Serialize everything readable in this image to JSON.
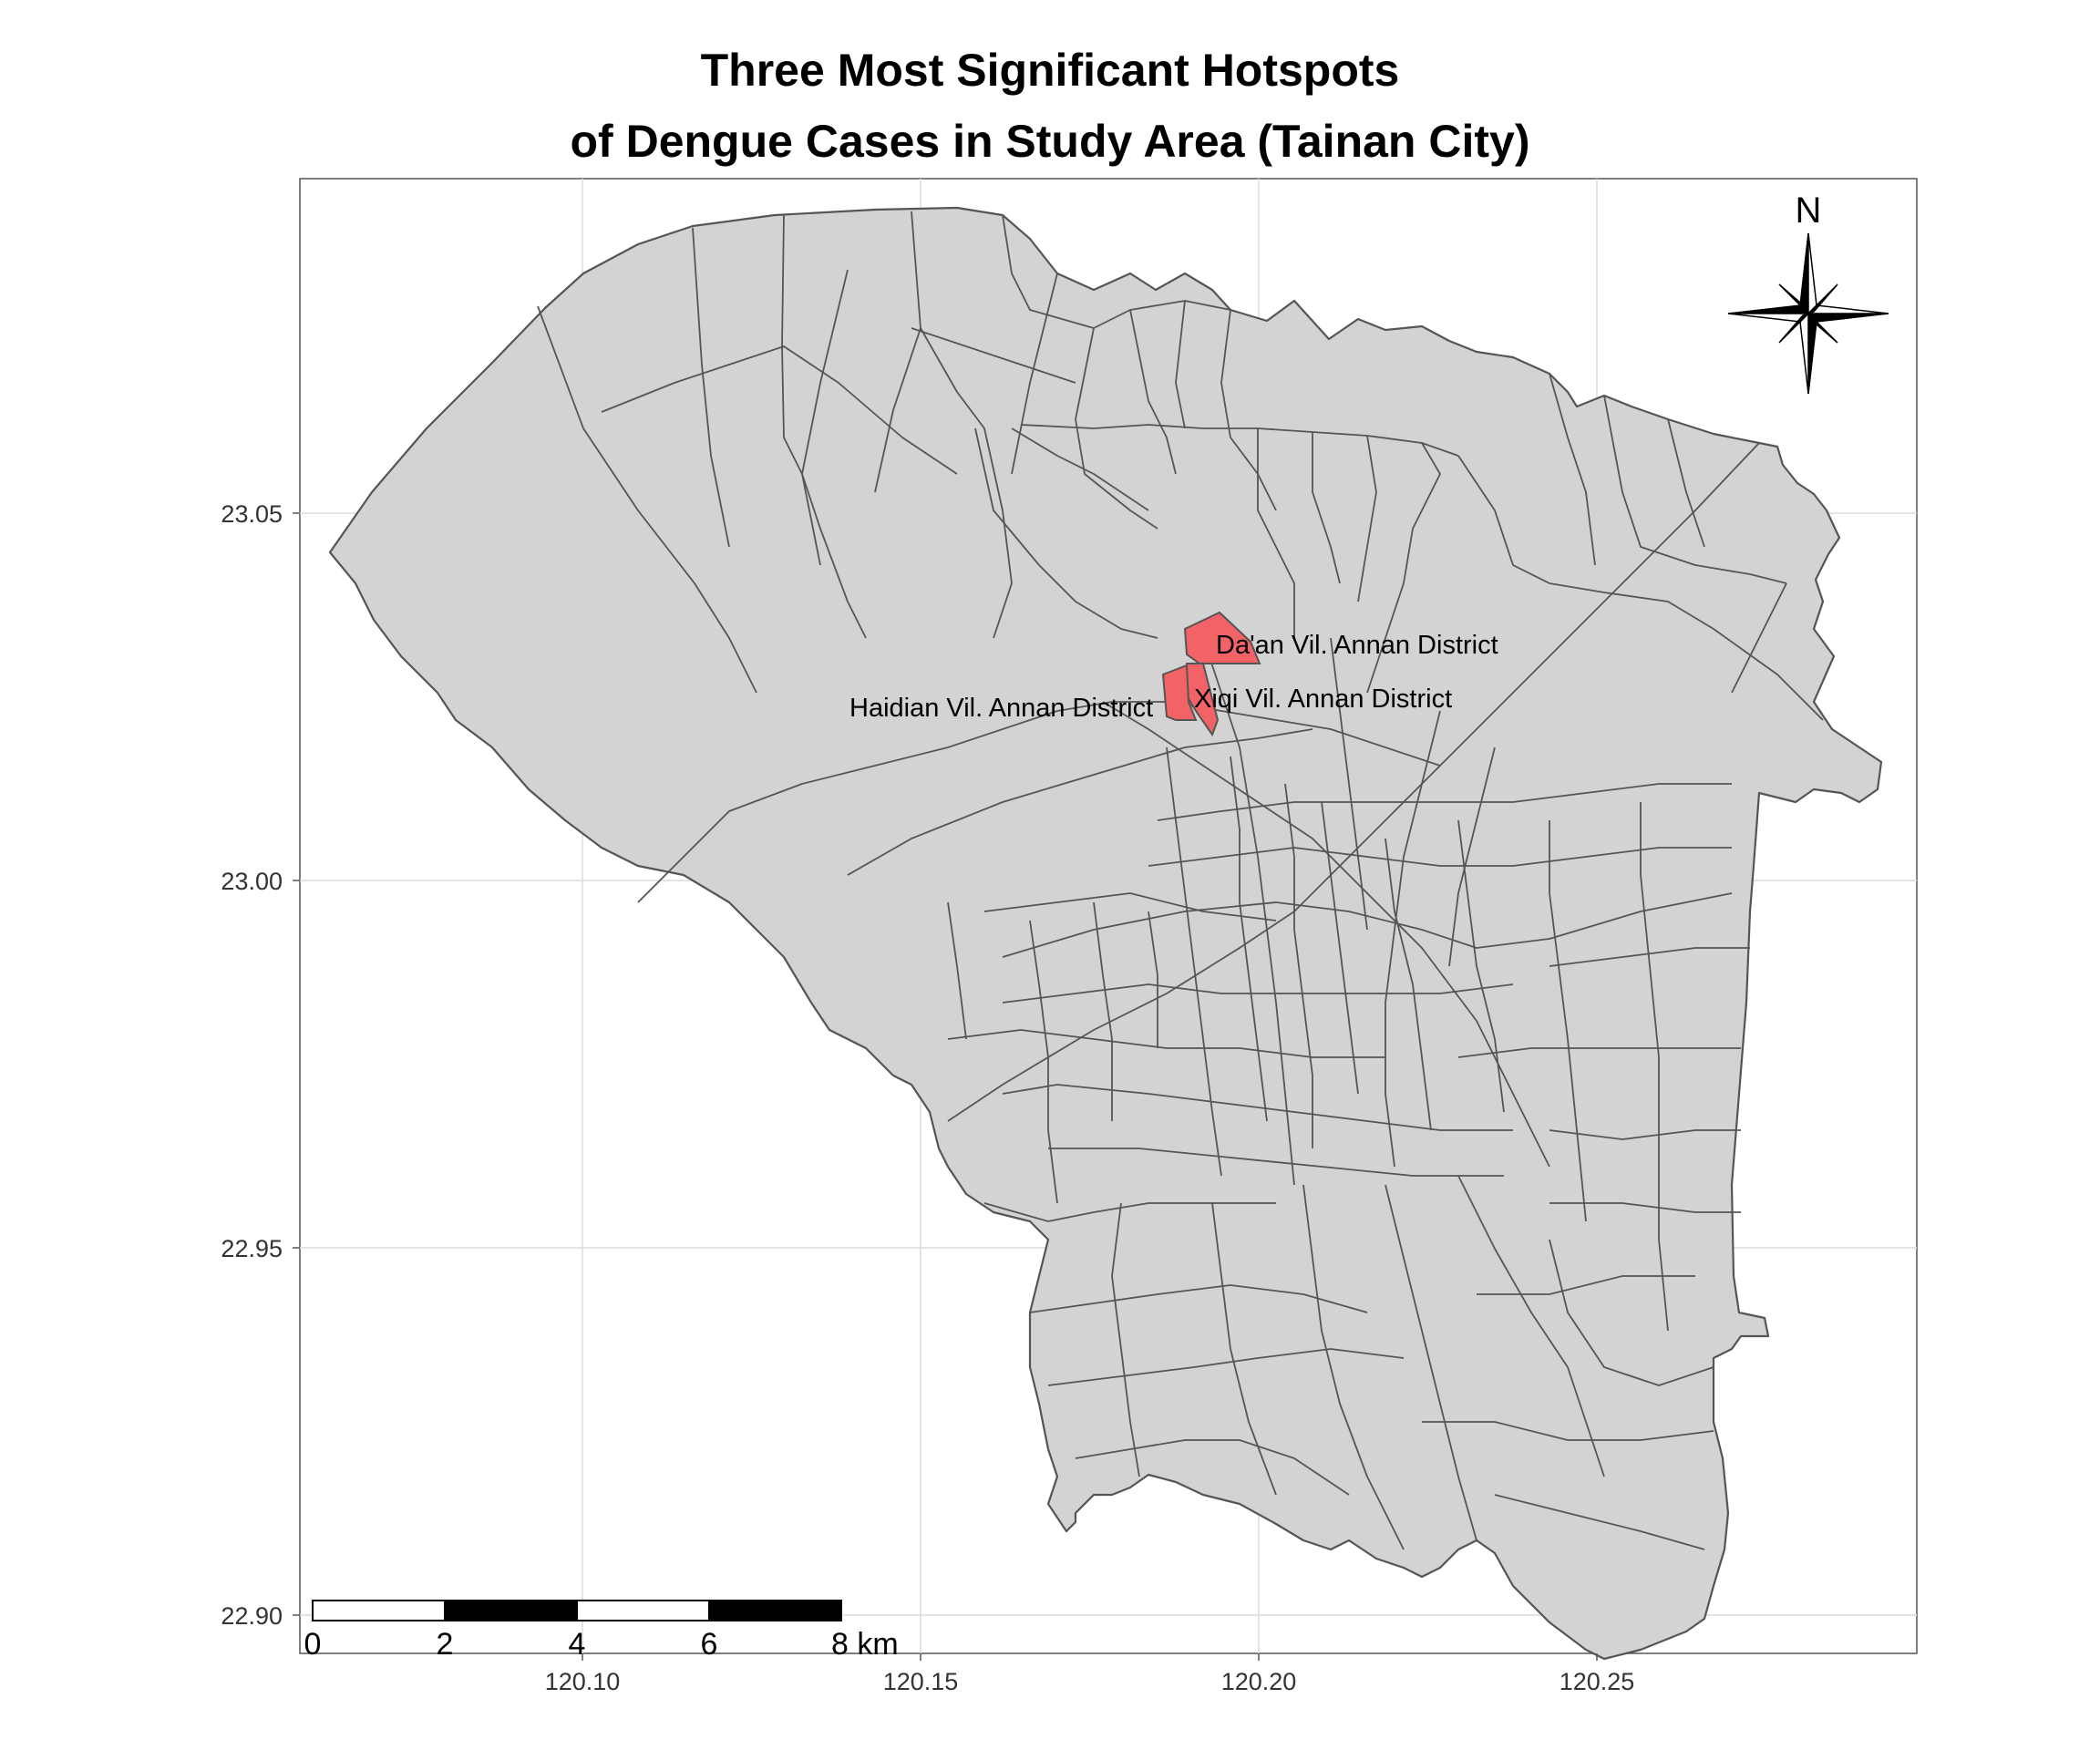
{
  "title_line1": "Three Most Significant Hotspots",
  "title_line2": "of Dengue Cases in Study Area (Tainan City)",
  "colors": {
    "area_fill": "#d3d3d3",
    "hotspot_fill": "#f16366",
    "border": "#555555",
    "grid": "#dddddd"
  },
  "y_ticks": [
    "23.05",
    "23.00",
    "22.95",
    "22.90"
  ],
  "x_ticks": [
    "120.10",
    "120.15",
    "120.20",
    "120.25"
  ],
  "north_label": "N",
  "hotspots": [
    {
      "label": "Da'an Vil. Annan District"
    },
    {
      "label": "Xiqi Vil. Annan District"
    },
    {
      "label": "Haidian Vil. Annan District"
    }
  ],
  "scale_bar": {
    "labels": [
      "0",
      "2",
      "4",
      "6",
      "8 km"
    ]
  }
}
